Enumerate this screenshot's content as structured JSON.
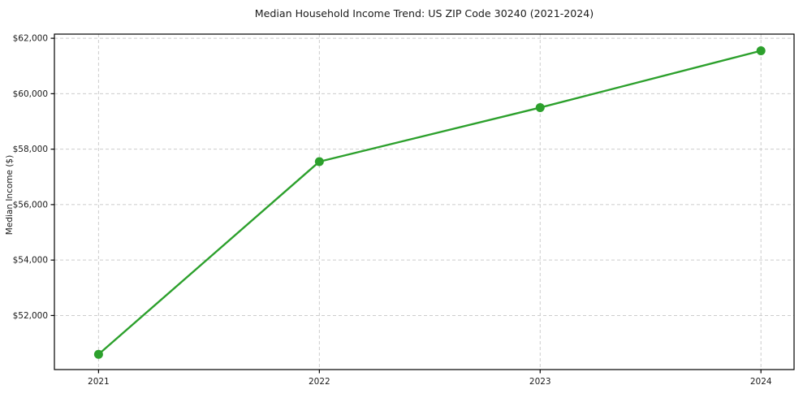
{
  "chart_data": {
    "type": "line",
    "title": "Median Household Income Trend: US ZIP Code 30240 (2021-2024)",
    "xlabel": "",
    "ylabel": "Median Income ($)",
    "x": [
      2021,
      2022,
      2023,
      2024
    ],
    "xtick_labels": [
      "2021",
      "2022",
      "2023",
      "2024"
    ],
    "values": [
      50600,
      57550,
      59500,
      61550
    ],
    "yticks": [
      52000,
      54000,
      56000,
      58000,
      60000,
      62000
    ],
    "ytick_labels": [
      "$52,000",
      "$54,000",
      "$56,000",
      "$58,000",
      "$60,000",
      "$62,000"
    ],
    "xlim": [
      2020.8,
      2024.15
    ],
    "ylim": [
      50050,
      62150
    ],
    "grid": true,
    "grid_style": "dashed",
    "legend": "none",
    "marker": "circle",
    "colors": {
      "line": "#2ca02c",
      "marker": "#2ca02c",
      "grid": "#cccccc",
      "axis": "#000000",
      "text": "#1a1a1a",
      "background": "#ffffff"
    }
  }
}
